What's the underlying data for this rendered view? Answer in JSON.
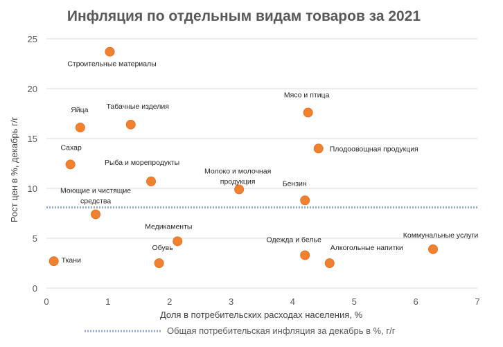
{
  "chart_data": {
    "type": "scatter",
    "title": "Инфляция по отдельным видам товаров за 2021",
    "xlabel": "Доля в потребительских расходах населения, %",
    "ylabel": "Рост цен в %, декабрь г/г",
    "xlim": [
      0,
      7
    ],
    "ylim": [
      0,
      25
    ],
    "x_ticks": [
      "0",
      "1",
      "2",
      "3",
      "4",
      "5",
      "6",
      "7"
    ],
    "y_ticks": [
      "0",
      "5",
      "10",
      "15",
      "20",
      "25"
    ],
    "grid": "horizontal",
    "point_color": "#f0812e",
    "reference_line": {
      "label": "Общая потребительская инфляция за декабрь в %, г/г",
      "y": 8.1,
      "color": "#8eaadb"
    },
    "legend_position": "bottom",
    "points": [
      {
        "label": "Строительные материалы",
        "x": 1.03,
        "y": 23.7
      },
      {
        "label": "Мясо и птица",
        "x": 4.25,
        "y": 17.6
      },
      {
        "label": "Табачные изделия",
        "x": 1.37,
        "y": 16.4
      },
      {
        "label": "Яйца",
        "x": 0.55,
        "y": 16.1
      },
      {
        "label": "Плодоовощная продукция",
        "x": 4.42,
        "y": 14.0
      },
      {
        "label": "Сахар",
        "x": 0.39,
        "y": 12.4
      },
      {
        "label": "Рыба и морепродукты",
        "x": 1.7,
        "y": 10.7
      },
      {
        "label": "Молоко и молочная продукция",
        "x": 3.13,
        "y": 9.9
      },
      {
        "label": "Бензин",
        "x": 4.2,
        "y": 8.8
      },
      {
        "label": "Моющие и чистящие средства",
        "x": 0.8,
        "y": 7.4
      },
      {
        "label": "Медикаменты",
        "x": 2.13,
        "y": 4.7
      },
      {
        "label": "Коммунальные услуги",
        "x": 6.28,
        "y": 3.9
      },
      {
        "label": "Одежда и белье",
        "x": 4.2,
        "y": 3.3
      },
      {
        "label": "Ткани",
        "x": 0.12,
        "y": 2.7
      },
      {
        "label": "Обувь",
        "x": 1.83,
        "y": 2.5
      },
      {
        "label": "Алкогольные напитки",
        "x": 4.6,
        "y": 2.5
      }
    ]
  }
}
